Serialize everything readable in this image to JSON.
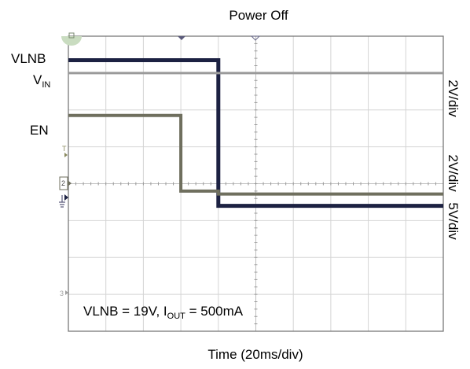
{
  "chart_data": {
    "type": "line",
    "title": "Power Off",
    "xlabel": "Time (20ms/div)",
    "ylabel": "",
    "grid": true,
    "divisions": {
      "x": 10,
      "y": 8
    },
    "xlim_div": [
      0,
      10
    ],
    "ylim_div": [
      0,
      8
    ],
    "channel_labels": {
      "vlnb": "VLNB",
      "vin_main": "V",
      "vin_sub": "IN",
      "en": "EN"
    },
    "scale_labels": {
      "top": "2V/div",
      "bottom_line1": "2V/div",
      "bottom_line2": "5V/div"
    },
    "annotation": {
      "part1": "VLNB = 19V, I",
      "sub": "OUT",
      "part2": " = 500mA"
    },
    "markers": {
      "ch2": "2",
      "ch3": "3",
      "ch_t": "T"
    },
    "series": [
      {
        "name": "VLNB",
        "color": "#1c2142",
        "x_div": [
          0,
          4.0,
          4.0,
          10
        ],
        "y_div": [
          7.35,
          7.35,
          3.4,
          3.4
        ]
      },
      {
        "name": "VIN",
        "color": "#9a9a9a",
        "x_div": [
          0,
          10
        ],
        "y_div": [
          7.0,
          7.0
        ]
      },
      {
        "name": "EN",
        "color": "#6f6f5e",
        "x_div": [
          0,
          3.0,
          3.0,
          4.0,
          4.0,
          10
        ],
        "y_div": [
          5.85,
          5.85,
          3.8,
          3.8,
          3.72,
          3.72
        ]
      }
    ]
  }
}
